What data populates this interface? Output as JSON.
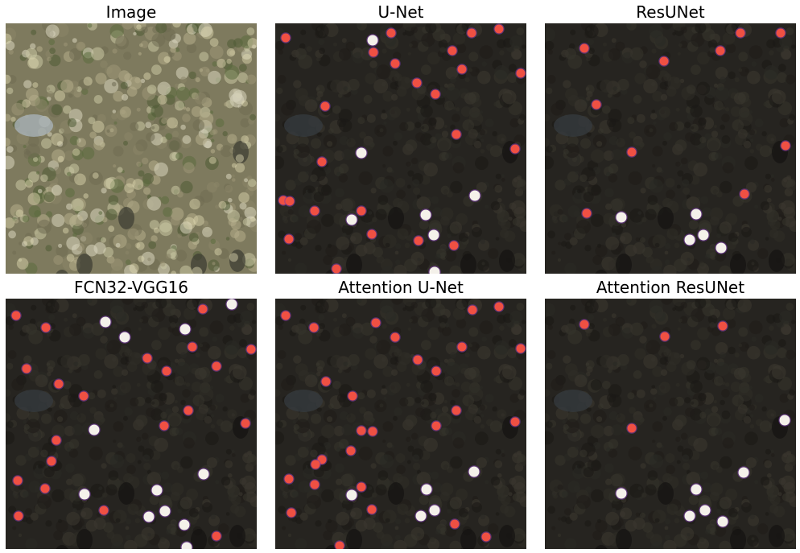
{
  "panels": [
    {
      "title": "Image"
    },
    {
      "title": "U-Net"
    },
    {
      "title": "ResUNet"
    },
    {
      "title": "FCN32-VGG16"
    },
    {
      "title": "Attention U-Net"
    },
    {
      "title": "Attention ResUNet"
    }
  ],
  "colors": {
    "background": "#ffffff",
    "aerial_base": "#7e7a5e",
    "dark_overlay": "#262420",
    "prediction_red": "#ef5043",
    "prediction_white": "#f4f1ea",
    "prediction_edge": "#7a3aa8"
  }
}
